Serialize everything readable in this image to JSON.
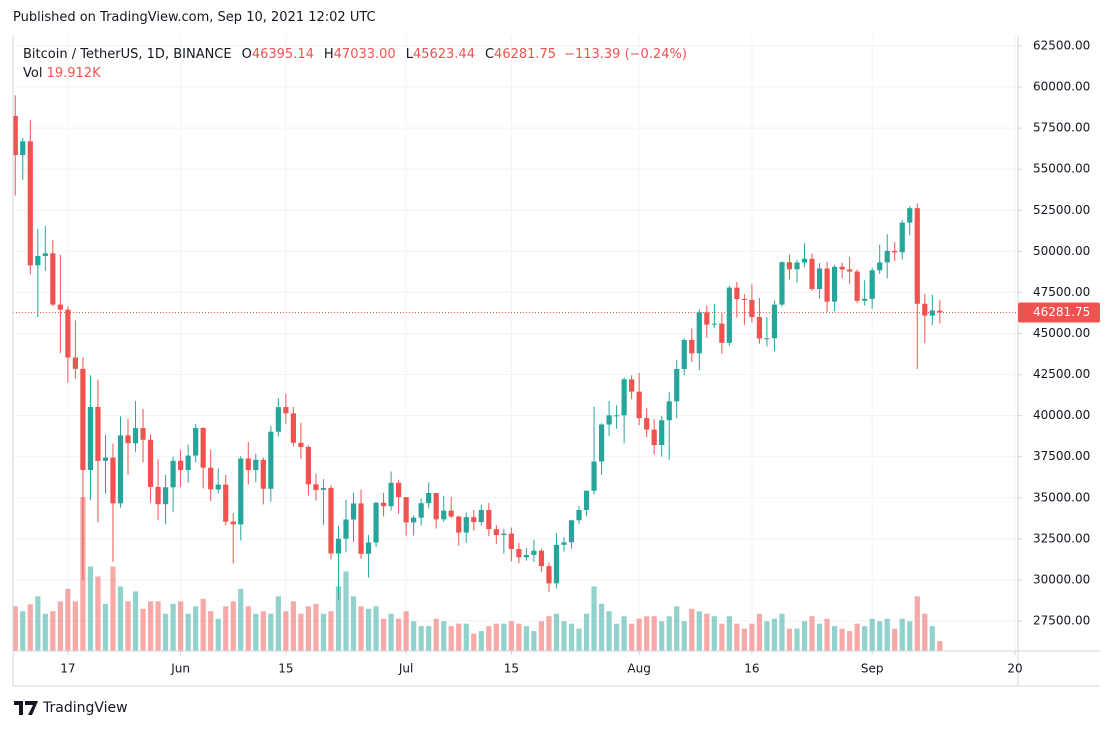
{
  "header": {
    "published": "Published on TradingView.com, Sep 10, 2021 12:02 UTC",
    "brand": "TradingView"
  },
  "chart_data": {
    "type": "candlestick",
    "legend": {
      "symbol": "Bitcoin / TetherUS, 1D, BINANCE",
      "ohlc": [
        {
          "key": "O",
          "value": "46395.14"
        },
        {
          "key": "H",
          "value": "47033.00"
        },
        {
          "key": "L",
          "value": "45623.44"
        },
        {
          "key": "C",
          "value": "46281.75"
        }
      ],
      "change": "−113.39 (−0.24%)",
      "volume_name": "Vol",
      "volume_label": "19.912K"
    },
    "up_color": "#26a69a",
    "down_color": "#ef5350",
    "grid": true,
    "xlim": [
      -0.3,
      133.4
    ],
    "ylim": [
      25674,
      63170
    ],
    "xticks": [
      {
        "value": 7,
        "label": "17"
      },
      {
        "value": 22,
        "label": "Jun"
      },
      {
        "value": 36,
        "label": "15"
      },
      {
        "value": 52,
        "label": "Jul"
      },
      {
        "value": 66,
        "label": "15"
      },
      {
        "value": 83,
        "label": "Aug"
      },
      {
        "value": 98,
        "label": "16"
      },
      {
        "value": 114,
        "label": "Sep"
      },
      {
        "value": 133,
        "label": "20"
      }
    ],
    "yticks": [
      {
        "value": 27500,
        "label": "27500.00"
      },
      {
        "value": 30000,
        "label": "30000.00"
      },
      {
        "value": 32500,
        "label": "32500.00"
      },
      {
        "value": 35000,
        "label": "35000.00"
      },
      {
        "value": 37500,
        "label": "37500.00"
      },
      {
        "value": 40000,
        "label": "40000.00"
      },
      {
        "value": 42500,
        "label": "42500.00"
      },
      {
        "value": 45000,
        "label": "45000.00"
      },
      {
        "value": 47500,
        "label": "47500.00"
      },
      {
        "value": 50000,
        "label": "50000.00"
      },
      {
        "value": 52500,
        "label": "52500.00"
      },
      {
        "value": 55000,
        "label": "55000.00"
      },
      {
        "value": 57500,
        "label": "57500.00"
      },
      {
        "value": 60000,
        "label": "60000.00"
      },
      {
        "value": 62500,
        "label": "62500.00"
      }
    ],
    "last_price": {
      "value": 46281.75,
      "label": "46281.75"
    },
    "candles": [
      [
        58240,
        59500,
        53400,
        55860
      ],
      [
        55860,
        56900,
        54340,
        56700
      ],
      [
        56700,
        58000,
        48600,
        49150
      ],
      [
        49150,
        51370,
        46000,
        49720
      ],
      [
        49720,
        51550,
        48800,
        49880
      ],
      [
        49880,
        50700,
        46650,
        46760
      ],
      [
        46760,
        49800,
        43800,
        46450
      ],
      [
        46450,
        46650,
        42000,
        43540
      ],
      [
        43540,
        45800,
        42250,
        42850
      ],
      [
        42850,
        43550,
        30000,
        36690
      ],
      [
        36690,
        42450,
        34850,
        40530
      ],
      [
        40530,
        42200,
        33500,
        37250
      ],
      [
        37250,
        38850,
        35250,
        37450
      ],
      [
        37450,
        38300,
        31100,
        34660
      ],
      [
        34660,
        39950,
        34400,
        38800
      ],
      [
        38800,
        39800,
        36400,
        38320
      ],
      [
        38320,
        40900,
        37800,
        39240
      ],
      [
        39240,
        40410,
        37150,
        38530
      ],
      [
        38530,
        38860,
        34700,
        35660
      ],
      [
        35660,
        37340,
        33630,
        34610
      ],
      [
        34610,
        36400,
        33380,
        35640
      ],
      [
        35640,
        37500,
        34150,
        37250
      ],
      [
        37250,
        37900,
        35670,
        36690
      ],
      [
        36690,
        38230,
        35920,
        37570
      ],
      [
        37570,
        39480,
        37170,
        39250
      ],
      [
        39250,
        39290,
        35570,
        36830
      ],
      [
        36830,
        37920,
        34800,
        35510
      ],
      [
        35510,
        36790,
        35260,
        35800
      ],
      [
        35800,
        36400,
        33330,
        33550
      ],
      [
        33550,
        34070,
        31000,
        33380
      ],
      [
        33380,
        37530,
        32400,
        37390
      ],
      [
        37390,
        38400,
        35800,
        36690
      ],
      [
        36690,
        37690,
        35940,
        37310
      ],
      [
        37310,
        37450,
        34600,
        35550
      ],
      [
        35550,
        39380,
        34760,
        39020
      ],
      [
        39020,
        41060,
        38730,
        40520
      ],
      [
        40520,
        41330,
        39510,
        40140
      ],
      [
        40140,
        40530,
        38120,
        38350
      ],
      [
        38350,
        39560,
        37370,
        38090
      ],
      [
        38090,
        38200,
        35130,
        35820
      ],
      [
        35820,
        36460,
        34830,
        35480
      ],
      [
        35480,
        36140,
        33350,
        35600
      ],
      [
        35600,
        35750,
        31250,
        31610
      ],
      [
        31610,
        33300,
        28800,
        32510
      ],
      [
        32510,
        34880,
        31680,
        33680
      ],
      [
        33680,
        35300,
        32300,
        34660
      ],
      [
        34660,
        35500,
        31280,
        31590
      ],
      [
        31590,
        32730,
        30150,
        32280
      ],
      [
        32280,
        34750,
        32000,
        34700
      ],
      [
        34700,
        35300,
        33860,
        34490
      ],
      [
        34490,
        36600,
        34220,
        35910
      ],
      [
        35910,
        36100,
        34020,
        35040
      ],
      [
        35040,
        35040,
        32710,
        33500
      ],
      [
        33500,
        33940,
        32700,
        33790
      ],
      [
        33790,
        34950,
        33320,
        34670
      ],
      [
        34670,
        35940,
        34360,
        35290
      ],
      [
        35290,
        35290,
        33130,
        33690
      ],
      [
        33690,
        35120,
        33530,
        34220
      ],
      [
        34220,
        35060,
        33770,
        33860
      ],
      [
        33860,
        33910,
        32080,
        32880
      ],
      [
        32880,
        34100,
        32260,
        33820
      ],
      [
        33820,
        34260,
        33000,
        33520
      ],
      [
        33520,
        34590,
        33310,
        34260
      ],
      [
        34260,
        34680,
        32660,
        33090
      ],
      [
        33090,
        33340,
        32200,
        32730
      ],
      [
        32730,
        33120,
        31600,
        32820
      ],
      [
        32820,
        33190,
        31130,
        31880
      ],
      [
        31880,
        32250,
        31020,
        31380
      ],
      [
        31380,
        31950,
        31170,
        31520
      ],
      [
        31520,
        32440,
        31100,
        31780
      ],
      [
        31780,
        31900,
        30500,
        30840
      ],
      [
        30840,
        31060,
        29280,
        29790
      ],
      [
        29790,
        32860,
        29480,
        32140
      ],
      [
        32140,
        32600,
        31720,
        32290
      ],
      [
        32290,
        33650,
        31900,
        33630
      ],
      [
        33630,
        34500,
        33400,
        34260
      ],
      [
        34260,
        35400,
        33880,
        35430
      ],
      [
        35430,
        40550,
        35210,
        37210
      ],
      [
        37210,
        39540,
        36400,
        39460
      ],
      [
        39460,
        40900,
        38770,
        40020
      ],
      [
        40020,
        40640,
        39200,
        40020
      ],
      [
        40020,
        42320,
        38310,
        42210
      ],
      [
        42210,
        42450,
        41000,
        41460
      ],
      [
        41460,
        42600,
        39420,
        39850
      ],
      [
        39850,
        40460,
        38690,
        39150
      ],
      [
        39150,
        39780,
        37640,
        38210
      ],
      [
        38210,
        39970,
        37510,
        39720
      ],
      [
        39720,
        41420,
        37330,
        40870
      ],
      [
        40870,
        43390,
        39850,
        42840
      ],
      [
        42840,
        44700,
        42450,
        44610
      ],
      [
        44610,
        45310,
        43260,
        43790
      ],
      [
        43790,
        46460,
        42780,
        46290
      ],
      [
        46290,
        46700,
        44730,
        45540
      ],
      [
        45540,
        46800,
        45340,
        45600
      ],
      [
        45600,
        46220,
        43770,
        44430
      ],
      [
        44430,
        47890,
        44230,
        47790
      ],
      [
        47790,
        48140,
        45970,
        47100
      ],
      [
        47100,
        47400,
        45520,
        47050
      ],
      [
        47050,
        47990,
        45670,
        46000
      ],
      [
        46000,
        47160,
        44380,
        44700
      ],
      [
        44700,
        46000,
        44210,
        44710
      ],
      [
        44710,
        47000,
        43930,
        46760
      ],
      [
        46760,
        49380,
        46630,
        49340
      ],
      [
        49340,
        49800,
        48300,
        48910
      ],
      [
        48910,
        49500,
        48100,
        49320
      ],
      [
        49320,
        50500,
        49030,
        49550
      ],
      [
        49550,
        49880,
        47600,
        47710
      ],
      [
        47710,
        49290,
        47120,
        48960
      ],
      [
        48960,
        49350,
        46300,
        46940
      ],
      [
        46940,
        49180,
        46370,
        49060
      ],
      [
        49060,
        49310,
        48370,
        48900
      ],
      [
        48900,
        49660,
        48010,
        48770
      ],
      [
        48770,
        48900,
        46850,
        46990
      ],
      [
        46990,
        48240,
        46700,
        47110
      ],
      [
        47110,
        49000,
        46510,
        48850
      ],
      [
        48850,
        50400,
        48630,
        49330
      ],
      [
        49330,
        51050,
        48350,
        50030
      ],
      [
        50030,
        50560,
        49410,
        49940
      ],
      [
        49940,
        51900,
        49500,
        51750
      ],
      [
        51750,
        52780,
        50970,
        52630
      ],
      [
        52630,
        52920,
        42840,
        46810
      ],
      [
        46810,
        47390,
        44410,
        46090
      ],
      [
        46090,
        47360,
        45510,
        46400
      ],
      [
        46395.14,
        47033.0,
        45623.44,
        46281.75
      ]
    ],
    "volumes": [
      90,
      80,
      94,
      110,
      75,
      80,
      100,
      125,
      100,
      310,
      170,
      150,
      95,
      170,
      130,
      100,
      120,
      85,
      100,
      100,
      75,
      95,
      100,
      75,
      90,
      105,
      80,
      65,
      90,
      100,
      125,
      90,
      75,
      80,
      75,
      110,
      80,
      100,
      75,
      90,
      95,
      75,
      80,
      130,
      160,
      110,
      90,
      85,
      90,
      65,
      75,
      65,
      80,
      60,
      50,
      50,
      65,
      60,
      50,
      55,
      55,
      35,
      40,
      50,
      55,
      55,
      60,
      55,
      50,
      40,
      60,
      70,
      75,
      60,
      55,
      45,
      75,
      130,
      95,
      80,
      55,
      70,
      55,
      65,
      70,
      70,
      60,
      70,
      90,
      60,
      85,
      80,
      75,
      70,
      55,
      70,
      55,
      45,
      55,
      75,
      60,
      65,
      75,
      45,
      45,
      60,
      70,
      55,
      65,
      50,
      45,
      40,
      55,
      50,
      65,
      60,
      65,
      45,
      65,
      60,
      110,
      75,
      50,
      19.912
    ]
  }
}
